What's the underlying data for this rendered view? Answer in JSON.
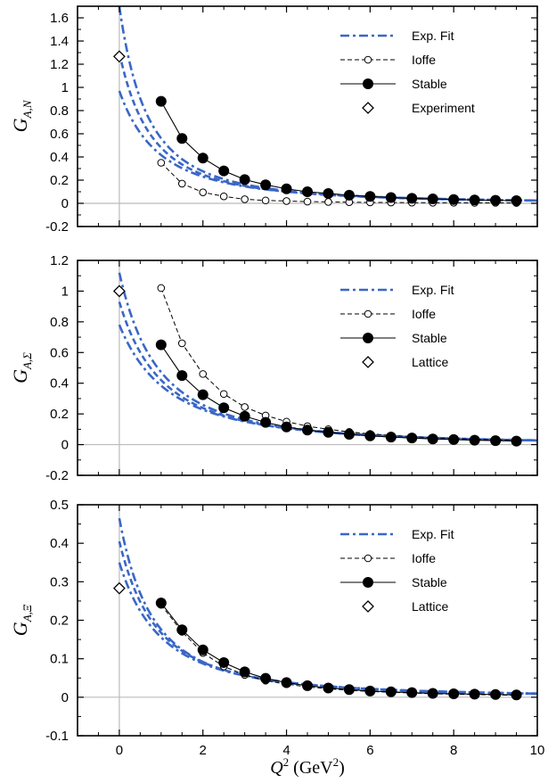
{
  "chart_data": [
    {
      "type": "line",
      "panel": "top",
      "ylabel_main": "G",
      "ylabel_sub": "A,N",
      "xlim": [
        -1,
        10
      ],
      "ylim": [
        -0.2,
        1.7
      ],
      "yticks": [
        -0.2,
        0,
        0.2,
        0.4,
        0.6,
        0.8,
        1,
        1.2,
        1.4,
        1.6
      ],
      "ytick_labels": [
        "-0.2",
        "0",
        "0.2",
        "0.4",
        "0.6",
        "0.8",
        "1",
        "1.2",
        "1.4",
        "1.6"
      ],
      "xticks": [
        0,
        2,
        4,
        6,
        8,
        10
      ],
      "legend_position": "top-right",
      "legend": [
        "Exp. Fit",
        "Ioffe",
        "Stable",
        "Experiment"
      ],
      "fit_curves": [
        {
          "a": 1.7,
          "m2": 1.35
        },
        {
          "a": 1.3,
          "m2": 1.55
        },
        {
          "a": 0.97,
          "m2": 1.9
        }
      ],
      "x": [
        1,
        1.5,
        2,
        2.5,
        3,
        3.5,
        4,
        4.5,
        5,
        5.5,
        6,
        6.5,
        7,
        7.5,
        8,
        8.5,
        9,
        9.5
      ],
      "series": [
        {
          "name": "Ioffe",
          "values": [
            0.35,
            0.17,
            0.095,
            0.06,
            0.035,
            0.025,
            0.02,
            0.015,
            0.012,
            0.01,
            0.008,
            0.007,
            0.006,
            0.005,
            0.005,
            0.004,
            0.004,
            0.003
          ]
        },
        {
          "name": "Stable",
          "values": [
            0.88,
            0.56,
            0.39,
            0.28,
            0.205,
            0.16,
            0.125,
            0.1,
            0.085,
            0.07,
            0.06,
            0.05,
            0.043,
            0.038,
            0.033,
            0.029,
            0.026,
            0.023
          ]
        }
      ],
      "marker_points": [
        {
          "name": "Experiment",
          "x": 0,
          "y": 1.267
        }
      ]
    },
    {
      "type": "line",
      "panel": "middle",
      "ylabel_main": "G",
      "ylabel_sub": "A,Σ",
      "xlim": [
        -1,
        10
      ],
      "ylim": [
        -0.2,
        1.2
      ],
      "yticks": [
        -0.2,
        0,
        0.2,
        0.4,
        0.6,
        0.8,
        1,
        1.2
      ],
      "ytick_labels": [
        "-0.2",
        "0",
        "0.2",
        "0.4",
        "0.6",
        "0.8",
        "1",
        "1.2"
      ],
      "xticks": [
        0,
        2,
        4,
        6,
        8,
        10
      ],
      "legend_position": "top-right",
      "legend": [
        "Exp. Fit",
        "Ioffe",
        "Stable",
        "Lattice"
      ],
      "fit_curves": [
        {
          "a": 1.12,
          "m2": 1.85
        },
        {
          "a": 0.93,
          "m2": 2.05
        },
        {
          "a": 0.78,
          "m2": 2.35
        }
      ],
      "x": [
        1,
        1.5,
        2,
        2.5,
        3,
        3.5,
        4,
        4.5,
        5,
        5.5,
        6,
        6.5,
        7,
        7.5,
        8,
        8.5,
        9,
        9.5
      ],
      "series": [
        {
          "name": "Ioffe",
          "values": [
            1.02,
            0.66,
            0.46,
            0.33,
            0.245,
            0.19,
            0.15,
            0.12,
            0.1,
            0.083,
            0.07,
            0.06,
            0.052,
            0.045,
            0.04,
            0.035,
            0.031,
            0.028
          ]
        },
        {
          "name": "Stable",
          "values": [
            0.65,
            0.45,
            0.325,
            0.24,
            0.185,
            0.145,
            0.115,
            0.095,
            0.08,
            0.067,
            0.057,
            0.049,
            0.043,
            0.037,
            0.033,
            0.029,
            0.026,
            0.023
          ]
        }
      ],
      "marker_points": [
        {
          "name": "Lattice",
          "x": 0,
          "y": 1.0
        }
      ]
    },
    {
      "type": "line",
      "panel": "bottom",
      "ylabel_main": "G",
      "ylabel_sub": "A,Ξ",
      "xlabel_main": "Q",
      "xlabel_sup": "2",
      "xlabel_unit_pre": " (GeV",
      "xlabel_unit_sup": "2",
      "xlabel_unit_post": ")",
      "xlim": [
        -1,
        10
      ],
      "ylim": [
        -0.1,
        0.5
      ],
      "yticks": [
        -0.1,
        0,
        0.1,
        0.2,
        0.3,
        0.4,
        0.5
      ],
      "ytick_labels": [
        "-0.1",
        "0",
        "0.1",
        "0.2",
        "0.3",
        "0.4",
        "0.5"
      ],
      "xticks": [
        0,
        2,
        4,
        6,
        8,
        10
      ],
      "xtick_labels": [
        "0",
        "2",
        "4",
        "6",
        "8",
        "10"
      ],
      "legend_position": "top-right",
      "legend": [
        "Exp. Fit",
        "Ioffe",
        "Stable",
        "Lattice"
      ],
      "fit_curves": [
        {
          "a": 0.465,
          "m2": 1.6
        },
        {
          "a": 0.405,
          "m2": 1.8
        },
        {
          "a": 0.35,
          "m2": 2.0
        }
      ],
      "x": [
        1,
        1.5,
        2,
        2.5,
        3,
        3.5,
        4,
        4.5,
        5,
        5.5,
        6,
        6.5,
        7,
        7.5,
        8,
        8.5,
        9,
        9.5
      ],
      "series": [
        {
          "name": "Ioffe",
          "values": [
            0.24,
            0.17,
            0.115,
            0.08,
            0.058,
            0.043,
            0.034,
            0.027,
            0.022,
            0.018,
            0.015,
            0.013,
            0.011,
            0.009,
            0.008,
            0.007,
            0.006,
            0.005
          ]
        },
        {
          "name": "Stable",
          "values": [
            0.245,
            0.175,
            0.123,
            0.09,
            0.066,
            0.049,
            0.038,
            0.03,
            0.024,
            0.02,
            0.016,
            0.014,
            0.012,
            0.01,
            0.009,
            0.008,
            0.007,
            0.006
          ]
        }
      ],
      "marker_points": [
        {
          "name": "Lattice",
          "x": 0,
          "y": 0.283
        }
      ]
    }
  ],
  "colors": {
    "fit": "#3a67c6",
    "axis": "#000000",
    "zero_line": "#bbbbbb"
  }
}
